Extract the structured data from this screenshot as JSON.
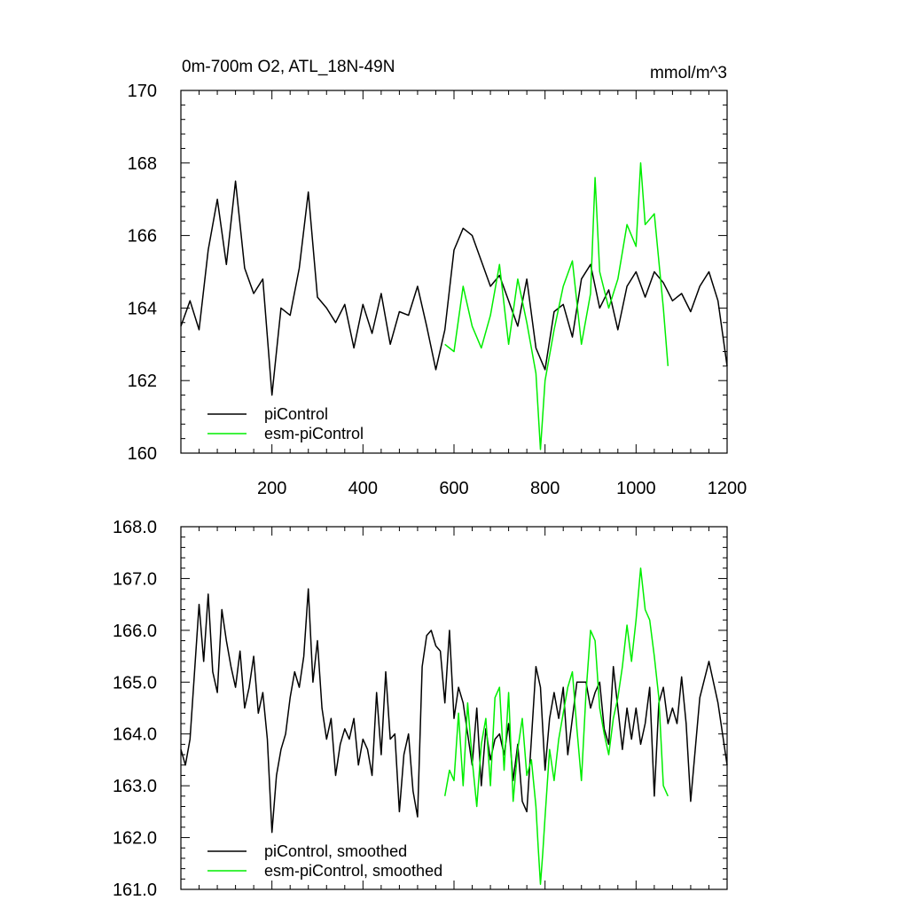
{
  "chart_data": [
    {
      "type": "line",
      "title": "0m-700m O2, ATL_18N-49N",
      "units": "mmol/m^3",
      "xlim": [
        0,
        1200
      ],
      "ylim": [
        160,
        170
      ],
      "x_ticks": [
        200,
        400,
        600,
        800,
        1000,
        1200
      ],
      "x_tick_labels": [
        "200",
        "400",
        "600",
        "800",
        "1000",
        "1200"
      ],
      "y_ticks": [
        160,
        162,
        164,
        166,
        168,
        170
      ],
      "y_tick_labels": [
        "160",
        "162",
        "164",
        "166",
        "168",
        "170"
      ],
      "series": [
        {
          "name": "piControl",
          "color": "#000000",
          "x": [
            0,
            20,
            40,
            60,
            80,
            100,
            120,
            140,
            160,
            180,
            200,
            220,
            240,
            260,
            280,
            300,
            320,
            340,
            360,
            380,
            400,
            420,
            440,
            460,
            480,
            500,
            520,
            540,
            560,
            580,
            600,
            620,
            640,
            660,
            680,
            700,
            720,
            740,
            760,
            780,
            800,
            820,
            840,
            860,
            880,
            900,
            920,
            940,
            960,
            980,
            1000,
            1020,
            1040,
            1060,
            1080,
            1100,
            1120,
            1140,
            1160,
            1180,
            1200
          ],
          "values": [
            163.5,
            164.2,
            163.4,
            165.6,
            167.0,
            165.2,
            167.5,
            165.1,
            164.4,
            164.8,
            161.6,
            164.0,
            163.8,
            165.1,
            167.2,
            164.3,
            164.0,
            163.6,
            164.1,
            162.9,
            164.1,
            163.3,
            164.4,
            163.0,
            163.9,
            163.8,
            164.6,
            163.5,
            162.3,
            163.4,
            165.6,
            166.2,
            166.0,
            165.3,
            164.6,
            164.9,
            164.2,
            163.5,
            164.8,
            162.9,
            162.3,
            163.9,
            164.1,
            163.2,
            164.8,
            165.2,
            164.0,
            164.5,
            163.4,
            164.6,
            165.0,
            164.3,
            165.0,
            164.7,
            164.2,
            164.4,
            163.9,
            164.6,
            165.0,
            164.2,
            162.4
          ]
        },
        {
          "name": "esm-piControl",
          "color": "#00ee00",
          "x": [
            580,
            600,
            620,
            640,
            660,
            680,
            700,
            720,
            740,
            760,
            780,
            790,
            800,
            820,
            840,
            860,
            880,
            900,
            910,
            920,
            940,
            960,
            980,
            1000,
            1010,
            1020,
            1040,
            1060,
            1070
          ],
          "values": [
            163.0,
            162.8,
            164.6,
            163.5,
            162.9,
            163.8,
            165.2,
            163.0,
            164.8,
            163.6,
            162.2,
            160.1,
            162.0,
            163.4,
            164.6,
            165.3,
            163.0,
            164.4,
            167.6,
            165.0,
            164.0,
            164.8,
            166.3,
            165.7,
            168.0,
            166.3,
            166.6,
            164.0,
            162.4
          ]
        }
      ],
      "legend": [
        "piControl",
        "esm-piControl"
      ],
      "legend_position": "bottom-left",
      "grid": false
    },
    {
      "type": "line",
      "title": "",
      "xlim": [
        0,
        1200
      ],
      "ylim": [
        161.0,
        168.0
      ],
      "x_ticks": [
        200,
        400,
        600,
        800,
        1000,
        1200
      ],
      "y_ticks": [
        161.0,
        162.0,
        163.0,
        164.0,
        165.0,
        166.0,
        167.0,
        168.0
      ],
      "y_tick_labels": [
        "161.0",
        "162.0",
        "163.0",
        "164.0",
        "165.0",
        "166.0",
        "167.0",
        "168.0"
      ],
      "series": [
        {
          "name": "piControl, smoothed",
          "color": "#000000",
          "x": [
            0,
            10,
            20,
            30,
            40,
            50,
            60,
            70,
            80,
            90,
            100,
            110,
            120,
            130,
            140,
            150,
            160,
            170,
            180,
            190,
            200,
            210,
            220,
            230,
            240,
            250,
            260,
            270,
            280,
            290,
            300,
            310,
            320,
            330,
            340,
            350,
            360,
            370,
            380,
            390,
            400,
            410,
            420,
            430,
            440,
            450,
            460,
            470,
            480,
            490,
            500,
            510,
            520,
            530,
            540,
            550,
            560,
            570,
            580,
            590,
            600,
            610,
            620,
            630,
            640,
            650,
            660,
            670,
            680,
            690,
            700,
            710,
            720,
            730,
            740,
            750,
            760,
            770,
            780,
            790,
            800,
            810,
            820,
            830,
            840,
            850,
            860,
            870,
            880,
            890,
            900,
            910,
            920,
            930,
            940,
            950,
            960,
            970,
            980,
            990,
            1000,
            1010,
            1020,
            1030,
            1040,
            1050,
            1060,
            1070,
            1080,
            1090,
            1100,
            1110,
            1120,
            1140,
            1160,
            1180,
            1200
          ],
          "values": [
            163.7,
            163.4,
            163.9,
            165.2,
            166.5,
            165.4,
            166.7,
            165.2,
            164.8,
            166.4,
            165.8,
            165.3,
            164.9,
            165.6,
            164.5,
            164.9,
            165.5,
            164.4,
            164.8,
            163.9,
            162.1,
            163.2,
            163.7,
            164.0,
            164.7,
            165.2,
            164.9,
            165.5,
            166.8,
            165.0,
            165.8,
            164.5,
            163.9,
            164.3,
            163.2,
            163.8,
            164.1,
            163.9,
            164.3,
            163.4,
            163.9,
            163.7,
            163.2,
            164.8,
            163.6,
            165.2,
            163.9,
            164.0,
            162.5,
            163.6,
            164.0,
            162.9,
            162.4,
            165.3,
            165.9,
            166.0,
            165.7,
            165.6,
            164.6,
            166.0,
            164.3,
            164.9,
            164.6,
            164.0,
            163.4,
            164.5,
            163.0,
            164.1,
            163.5,
            163.9,
            164.0,
            163.6,
            164.2,
            163.1,
            163.8,
            162.7,
            162.5,
            163.9,
            165.3,
            164.9,
            163.3,
            164.3,
            164.8,
            164.3,
            164.9,
            163.6,
            164.3,
            165.0,
            165.0,
            165.0,
            164.5,
            164.8,
            165.0,
            164.1,
            163.8,
            165.3,
            164.5,
            163.7,
            164.5,
            163.9,
            164.5,
            163.8,
            164.2,
            164.9,
            162.8,
            164.6,
            164.9,
            164.2,
            164.5,
            164.2,
            165.1,
            164.2,
            162.7,
            164.7,
            165.4,
            164.6,
            163.4
          ]
        },
        {
          "name": "esm-piControl, smoothed",
          "color": "#00ee00",
          "x": [
            580,
            590,
            600,
            610,
            620,
            630,
            640,
            650,
            660,
            670,
            680,
            690,
            700,
            710,
            720,
            730,
            740,
            750,
            760,
            770,
            780,
            785,
            790,
            795,
            800,
            810,
            820,
            830,
            840,
            850,
            860,
            870,
            880,
            890,
            900,
            910,
            920,
            930,
            940,
            950,
            960,
            970,
            980,
            990,
            1000,
            1010,
            1020,
            1030,
            1040,
            1050,
            1060,
            1070
          ],
          "values": [
            162.8,
            163.3,
            163.1,
            164.4,
            163.0,
            164.6,
            163.5,
            162.6,
            163.8,
            164.3,
            163.0,
            164.7,
            164.9,
            163.3,
            164.8,
            162.7,
            163.7,
            164.3,
            163.2,
            163.5,
            162.6,
            161.8,
            161.1,
            161.7,
            162.4,
            163.7,
            163.1,
            163.9,
            164.4,
            164.9,
            165.2,
            164.1,
            163.1,
            164.8,
            166.0,
            165.8,
            164.5,
            164.0,
            163.6,
            164.3,
            164.7,
            165.3,
            166.1,
            165.4,
            166.2,
            167.2,
            166.4,
            166.2,
            165.5,
            164.7,
            163.0,
            162.8
          ]
        }
      ],
      "legend": [
        "piControl, smoothed",
        "esm-piControl, smoothed"
      ],
      "legend_position": "bottom-left",
      "grid": false
    }
  ]
}
